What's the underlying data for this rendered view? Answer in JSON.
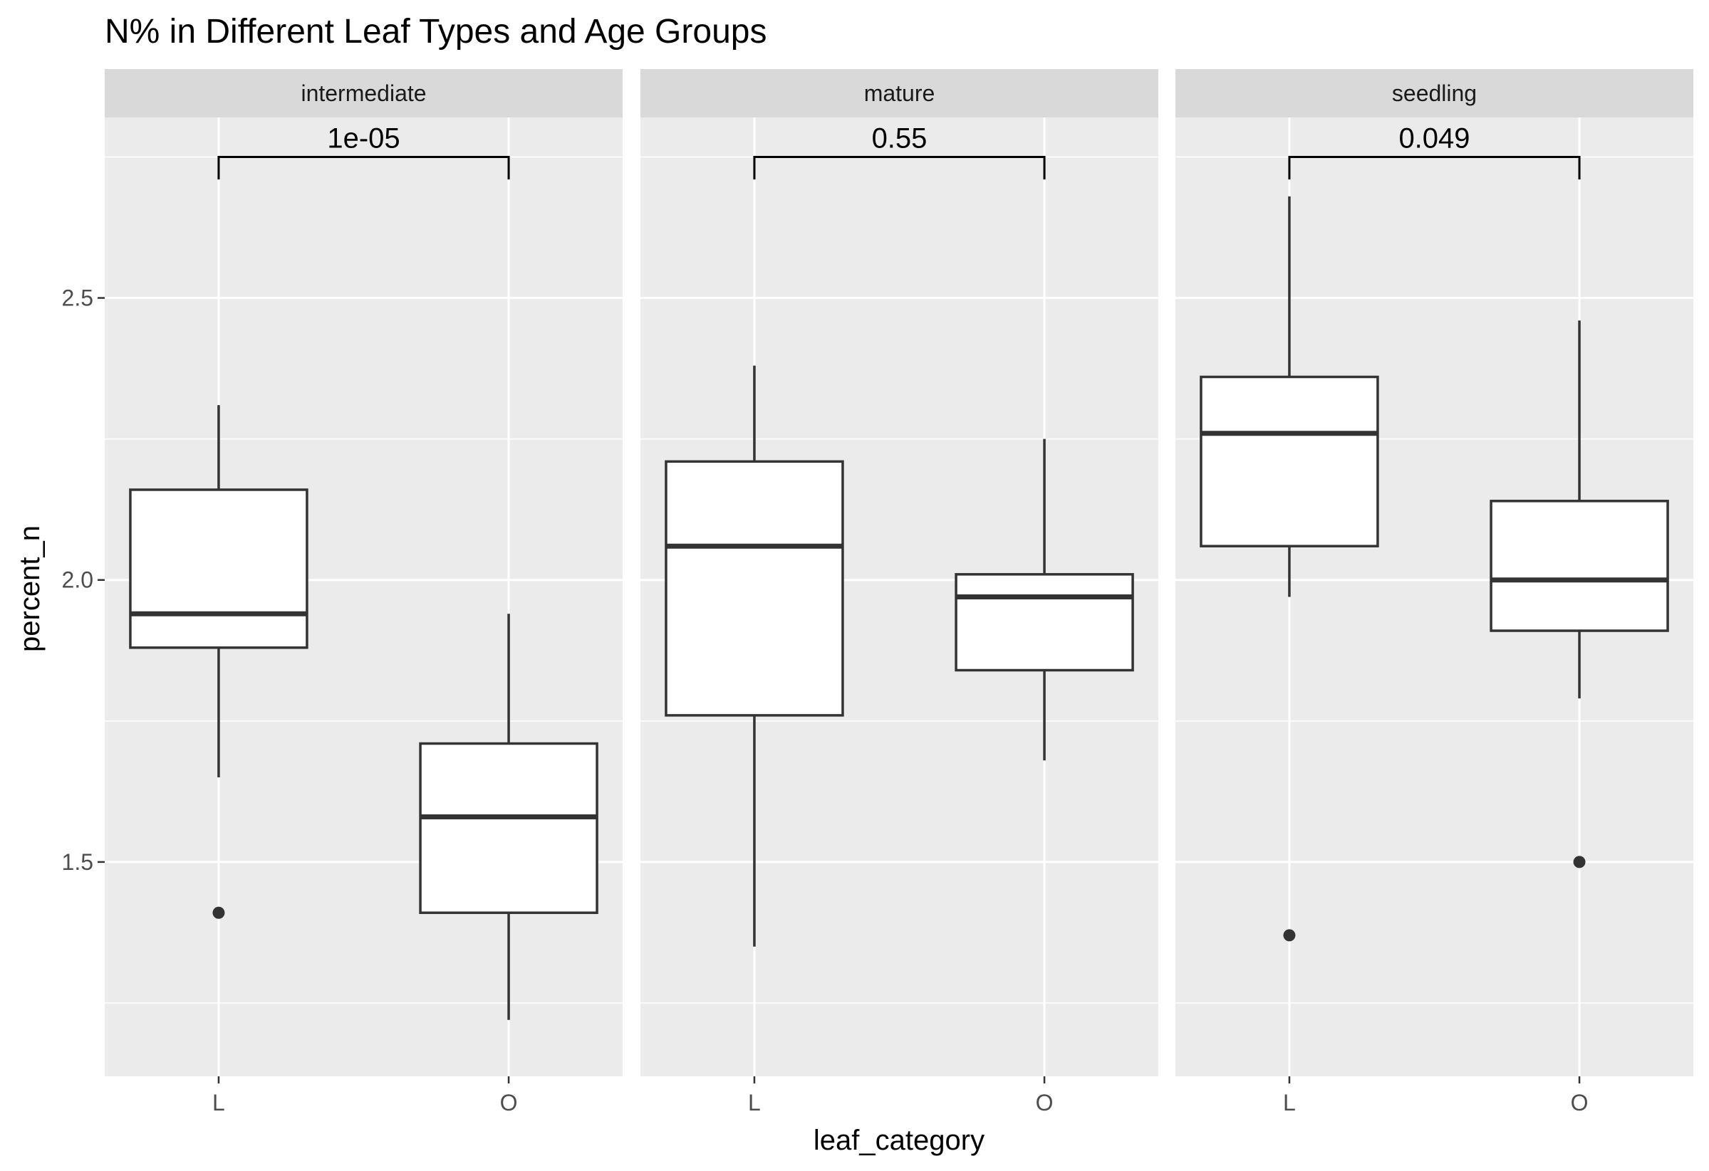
{
  "chart_data": {
    "type": "boxplot",
    "title": "N% in Different Leaf Types and Age Groups",
    "xlabel": "leaf_category",
    "ylabel": "percent_n",
    "categories": [
      "L",
      "O"
    ],
    "ylim": [
      1.12,
      2.82
    ],
    "yticks": [
      1.5,
      2.0,
      2.5
    ],
    "ytick_labels": [
      "1.5",
      "2.0",
      "2.5"
    ],
    "grid": true,
    "facets": [
      {
        "label": "intermediate",
        "p_value": "1e-05",
        "boxes": [
          {
            "category": "L",
            "min": 1.65,
            "q1": 1.88,
            "median": 1.94,
            "q3": 2.16,
            "max": 2.31,
            "outliers": [
              1.41
            ]
          },
          {
            "category": "O",
            "min": 1.22,
            "q1": 1.41,
            "median": 1.58,
            "q3": 1.71,
            "max": 1.94,
            "outliers": []
          }
        ]
      },
      {
        "label": "mature",
        "p_value": "0.55",
        "boxes": [
          {
            "category": "L",
            "min": 1.35,
            "q1": 1.76,
            "median": 2.06,
            "q3": 2.21,
            "max": 2.38,
            "outliers": []
          },
          {
            "category": "O",
            "min": 1.68,
            "q1": 1.84,
            "median": 1.97,
            "q3": 2.01,
            "max": 2.25,
            "outliers": []
          }
        ]
      },
      {
        "label": "seedling",
        "p_value": "0.049",
        "boxes": [
          {
            "category": "L",
            "min": 1.97,
            "q1": 2.06,
            "median": 2.26,
            "q3": 2.36,
            "max": 2.68,
            "outliers": [
              1.37
            ]
          },
          {
            "category": "O",
            "min": 1.79,
            "q1": 1.91,
            "median": 2.0,
            "q3": 2.14,
            "max": 2.46,
            "outliers": [
              1.5
            ]
          }
        ]
      }
    ],
    "bracket_y": 2.75,
    "bracket_drop": 2.71,
    "colors": {
      "panel_bg": "#ebebeb",
      "strip_bg": "#d9d9d9",
      "grid_major": "#ffffff",
      "box_fill": "#ffffff",
      "box_line": "#333333"
    }
  }
}
